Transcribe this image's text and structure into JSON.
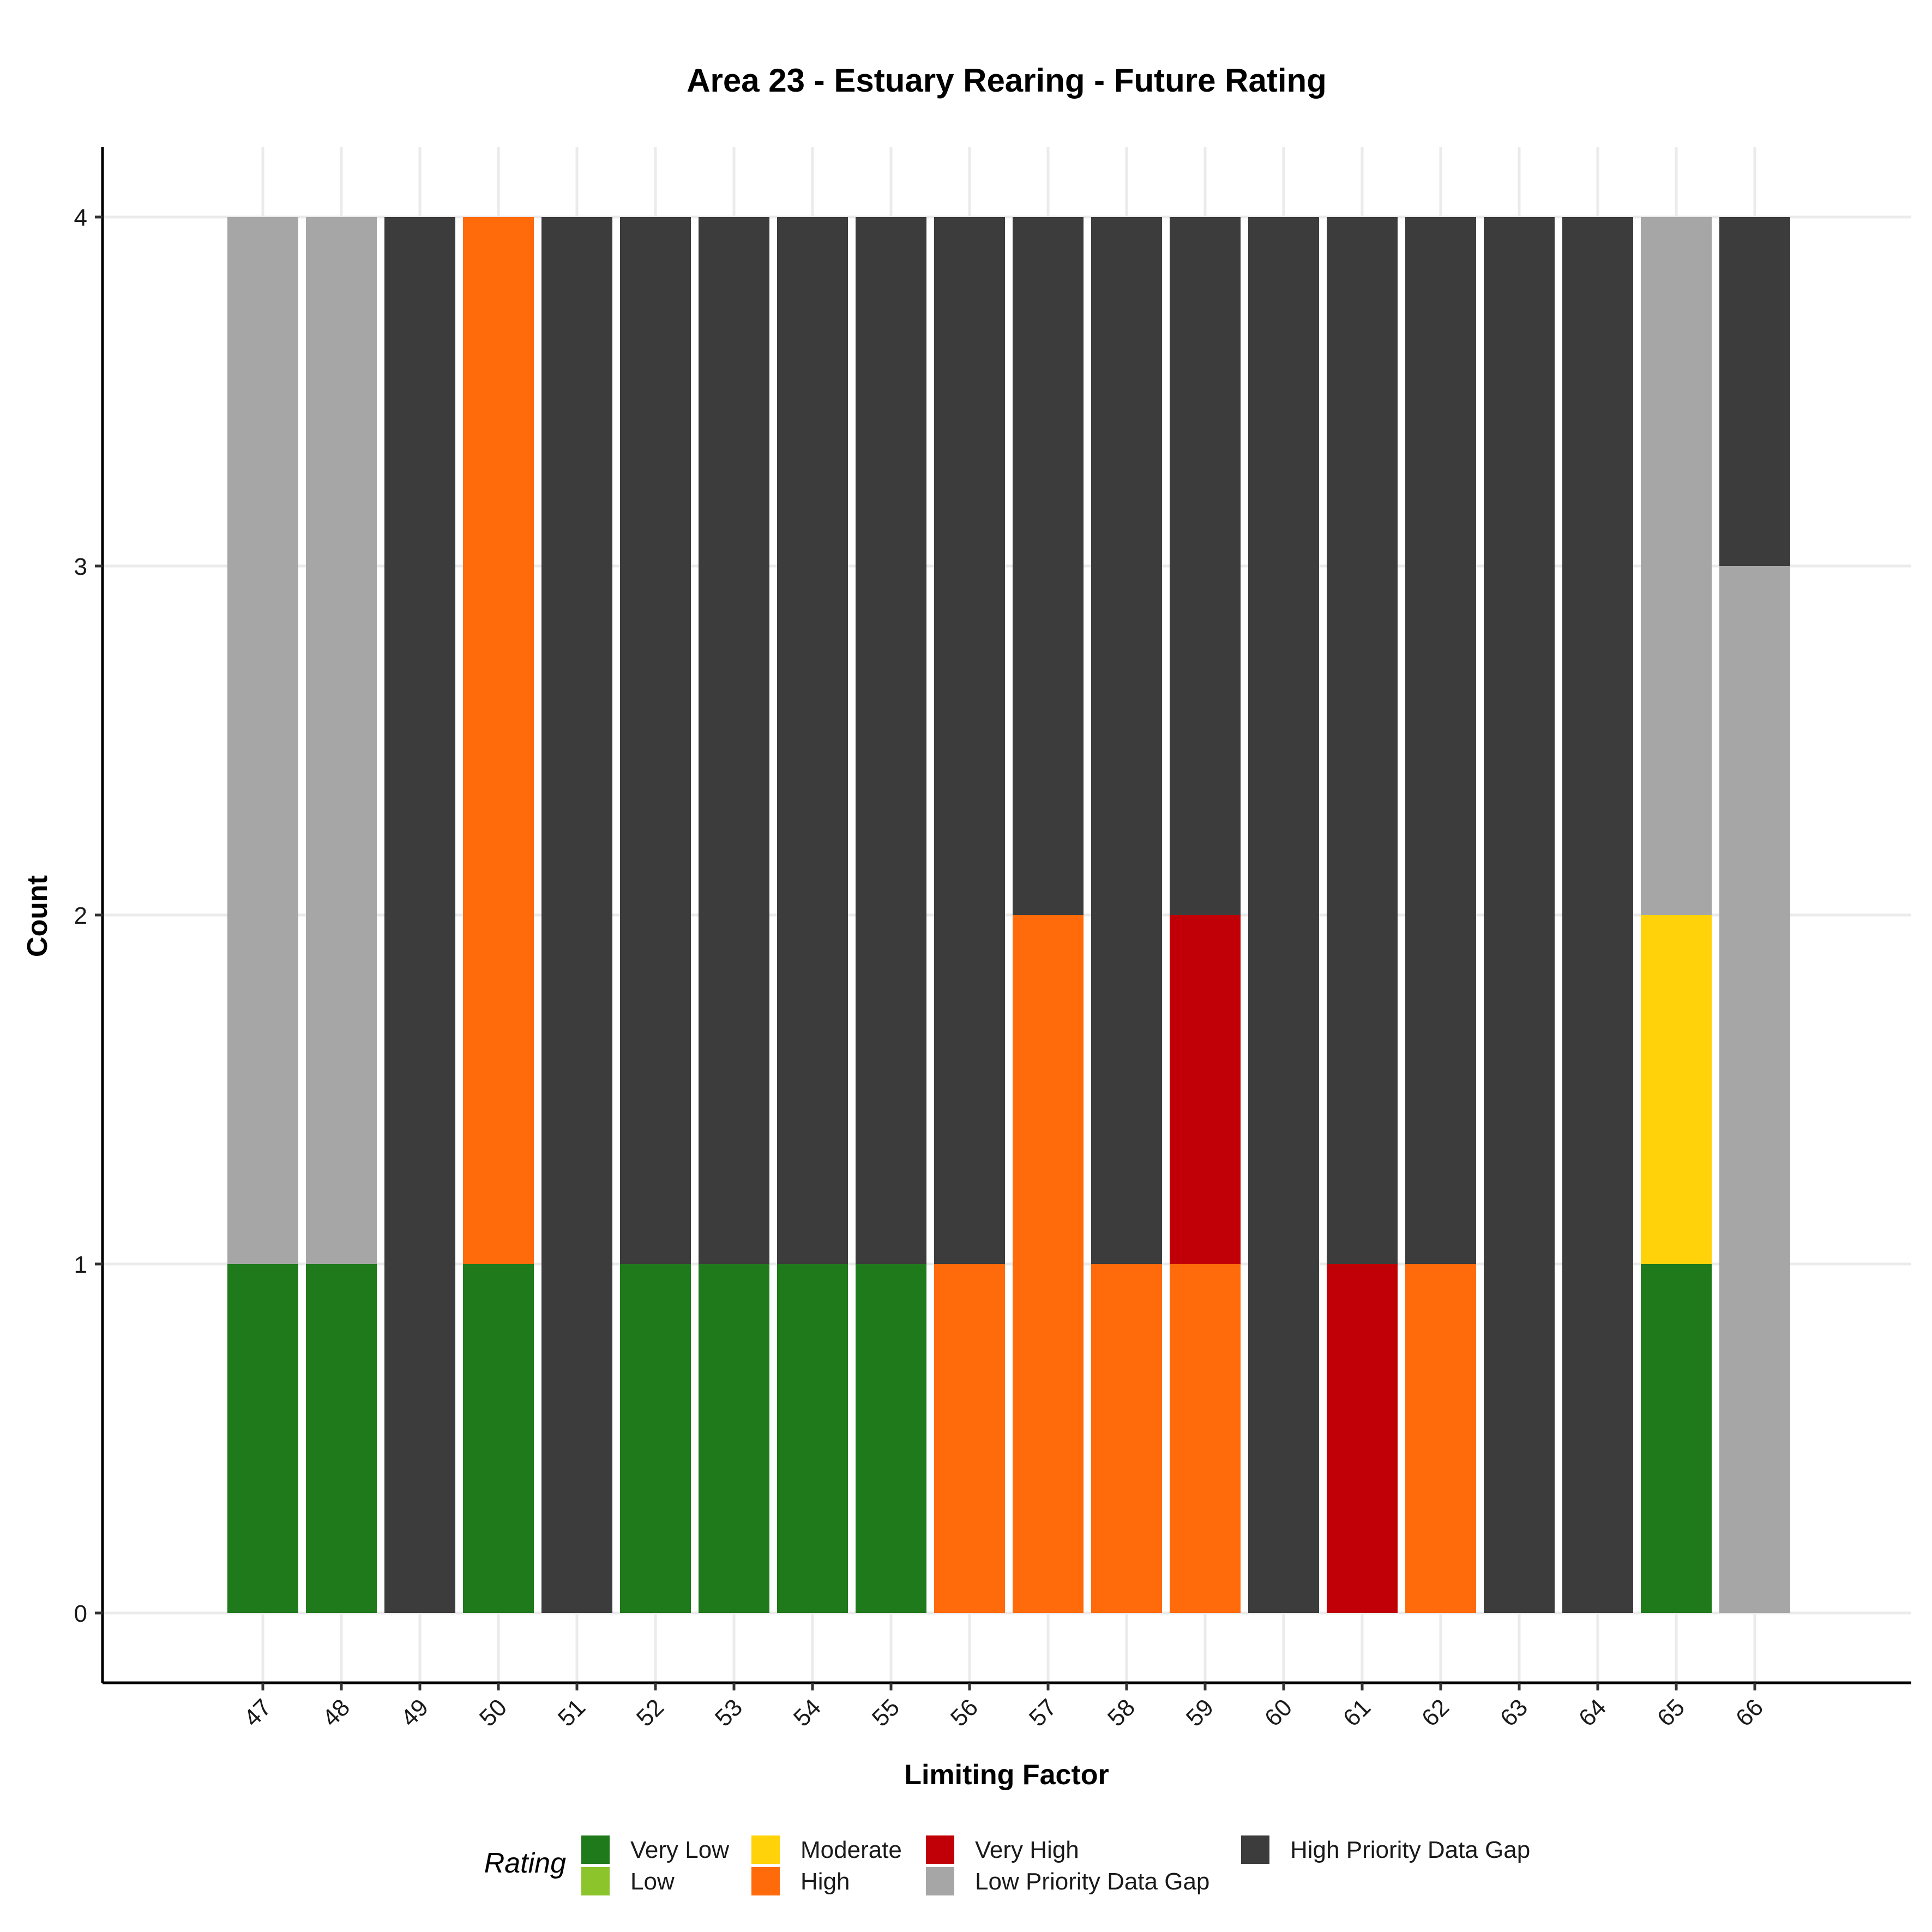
{
  "chart_data": {
    "type": "bar",
    "stacked": true,
    "title": "Area 23 - Estuary Rearing - Future Rating",
    "xlabel": "Limiting Factor",
    "ylabel": "Count",
    "ylim": [
      -0.2,
      4.2
    ],
    "yticks": [
      0,
      1,
      2,
      3,
      4
    ],
    "grid": true,
    "categories": [
      "47",
      "48",
      "49",
      "50",
      "51",
      "52",
      "53",
      "54",
      "55",
      "56",
      "57",
      "58",
      "59",
      "60",
      "61",
      "62",
      "63",
      "64",
      "65",
      "66"
    ],
    "legend": {
      "title": "Rating",
      "placement": "bottom",
      "entries": [
        {
          "label": "Very Low",
          "color": "#1f7a1c"
        },
        {
          "label": "Low",
          "color": "#8cc42b"
        },
        {
          "label": "Moderate",
          "color": "#ffd20a"
        },
        {
          "label": "High",
          "color": "#ff6a0a"
        },
        {
          "label": "Very High",
          "color": "#c00006"
        },
        {
          "label": "Low Priority Data Gap",
          "color": "#a6a6a6"
        },
        {
          "label": "High Priority Data Gap",
          "color": "#3c3c3c"
        }
      ]
    },
    "series": [
      {
        "name": "Very Low",
        "values": [
          1,
          1,
          0,
          1,
          0,
          1,
          1,
          1,
          1,
          0,
          0,
          0,
          0,
          0,
          0,
          0,
          0,
          0,
          1,
          0
        ]
      },
      {
        "name": "Low",
        "values": [
          0,
          0,
          0,
          0,
          0,
          0,
          0,
          0,
          0,
          0,
          0,
          0,
          0,
          0,
          0,
          0,
          0,
          0,
          0,
          0
        ]
      },
      {
        "name": "Moderate",
        "values": [
          0,
          0,
          0,
          0,
          0,
          0,
          0,
          0,
          0,
          0,
          0,
          0,
          0,
          0,
          0,
          0,
          0,
          0,
          1,
          0
        ]
      },
      {
        "name": "High",
        "values": [
          0,
          0,
          0,
          3,
          0,
          0,
          0,
          0,
          0,
          1,
          2,
          1,
          1,
          0,
          0,
          1,
          0,
          0,
          0,
          0
        ]
      },
      {
        "name": "Very High",
        "values": [
          0,
          0,
          0,
          0,
          0,
          0,
          0,
          0,
          0,
          0,
          0,
          0,
          1,
          0,
          1,
          0,
          0,
          0,
          0,
          0
        ]
      },
      {
        "name": "Low Priority Data Gap",
        "values": [
          3,
          3,
          0,
          0,
          0,
          0,
          0,
          0,
          0,
          0,
          0,
          0,
          0,
          0,
          0,
          0,
          0,
          0,
          2,
          3
        ]
      },
      {
        "name": "High Priority Data Gap",
        "values": [
          0,
          0,
          4,
          0,
          4,
          3,
          3,
          3,
          3,
          3,
          2,
          3,
          2,
          4,
          3,
          3,
          4,
          4,
          0,
          1
        ]
      }
    ]
  }
}
